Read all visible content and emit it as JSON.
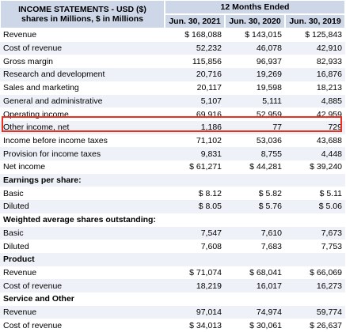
{
  "header": {
    "title_lines": [
      "INCOME STATEMENTS - USD ($)",
      "shares in Millions, $ in Millions"
    ],
    "period": "12 Months Ended",
    "columns": [
      "Jun. 30, 2021",
      "Jun. 30, 2020",
      "Jun. 30, 2019"
    ]
  },
  "table": {
    "rows": [
      [
        "Revenue",
        "$ 168,088",
        "$ 143,015",
        "$ 125,843"
      ],
      [
        "Cost of revenue",
        "52,232",
        "46,078",
        "42,910"
      ],
      [
        "Gross margin",
        "115,856",
        "96,937",
        "82,933"
      ],
      [
        "Research and development",
        "20,716",
        "19,269",
        "16,876"
      ],
      [
        "Sales and marketing",
        "20,117",
        "19,598",
        "18,213"
      ],
      [
        "General and administrative",
        "5,107",
        "5,111",
        "4,885"
      ],
      [
        "Operating income",
        "69,916",
        "52,959",
        "42,959"
      ],
      [
        "Other income, net",
        "1,186",
        "77",
        "729"
      ],
      [
        "Income before income taxes",
        "71,102",
        "53,036",
        "43,688"
      ],
      [
        "Provision for income taxes",
        "9,831",
        "8,755",
        "4,448"
      ],
      [
        "Net income",
        "$ 61,271",
        "$ 44,281",
        "$ 39,240"
      ],
      [
        "Earnings per share:"
      ],
      [
        "Basic",
        "$ 8.12",
        "$ 5.82",
        "$ 5.11"
      ],
      [
        "Diluted",
        "$ 8.05",
        "$ 5.76",
        "$ 5.06"
      ],
      [
        "Weighted average shares outstanding:"
      ],
      [
        "Basic",
        "7,547",
        "7,610",
        "7,673"
      ],
      [
        "Diluted",
        "7,608",
        "7,683",
        "7,753"
      ],
      [
        "Product"
      ],
      [
        "Revenue",
        "$ 71,074",
        "$ 68,041",
        "$ 66,069"
      ],
      [
        "Cost of revenue",
        "18,219",
        "16,017",
        "16,273"
      ],
      [
        "Service and Other"
      ],
      [
        "Revenue",
        "97,014",
        "74,974",
        "59,774"
      ],
      [
        "Cost of revenue",
        "$ 34,013",
        "$ 30,061",
        "$ 26,637"
      ]
    ]
  }
}
